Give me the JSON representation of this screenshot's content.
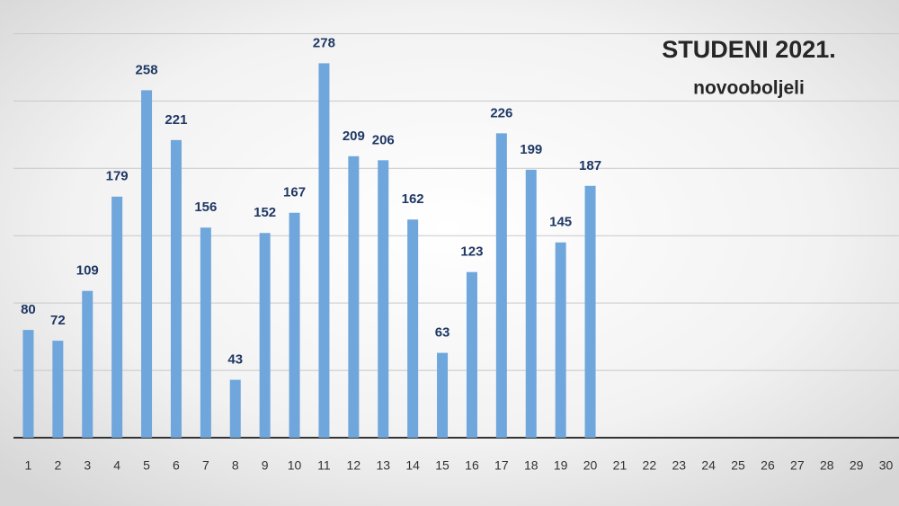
{
  "chart_data": {
    "type": "bar",
    "title": "STUDENI 2021.",
    "subtitle": "novooboljeli",
    "categories": [
      "1",
      "2",
      "3",
      "4",
      "5",
      "6",
      "7",
      "8",
      "9",
      "10",
      "11",
      "12",
      "13",
      "14",
      "15",
      "16",
      "17",
      "18",
      "19",
      "20",
      "21",
      "22",
      "23",
      "24",
      "25",
      "26",
      "27",
      "28",
      "29",
      "30"
    ],
    "values": [
      80,
      72,
      109,
      179,
      258,
      221,
      156,
      43,
      152,
      167,
      278,
      209,
      206,
      162,
      63,
      123,
      226,
      199,
      145,
      187,
      null,
      null,
      null,
      null,
      null,
      null,
      null,
      null,
      null,
      null
    ],
    "color": "#6fa6dc",
    "ylim": [
      0,
      325
    ],
    "yticks": [
      0,
      50,
      100,
      150,
      200,
      250,
      300
    ],
    "grid": true
  }
}
